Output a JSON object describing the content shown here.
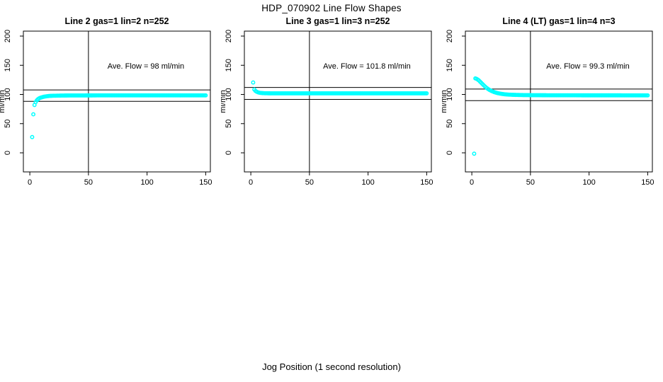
{
  "figure": {
    "main_title": "HDP_070902  Line Flow Shapes",
    "outer_xlabel": "Jog Position (1 second resolution)",
    "background": "#FFFFFF",
    "axis_color": "#000000",
    "point_color": "#00FFFF",
    "marker": "open-circle"
  },
  "chart_data": [
    {
      "type": "scatter",
      "title": "Line 2 gas=1 lin=2 n=252",
      "annotation": "Ave. Flow =  98  ml/min",
      "ave_flow_ml_min": 98,
      "n": 252,
      "ylabel": "ml/min",
      "x_ticks": [
        0,
        50,
        100,
        150
      ],
      "y_ticks": [
        0,
        50,
        100,
        150,
        200
      ],
      "xlim": [
        -5.5,
        154
      ],
      "ylim": [
        -32.7,
        208.5
      ],
      "vline_x": 50,
      "hlines": [
        107.8,
        88.2
      ],
      "annotation_xy": [
        99,
        149
      ],
      "x_step": 1,
      "keypoints": [
        [
          2,
          27
        ],
        [
          3,
          66
        ],
        [
          4,
          82
        ],
        [
          5,
          87
        ],
        [
          6,
          90
        ],
        [
          7,
          92
        ],
        [
          8,
          93.4
        ],
        [
          9,
          94.3
        ],
        [
          10,
          95
        ],
        [
          11,
          95.6
        ],
        [
          12,
          96.1
        ],
        [
          13,
          96.5
        ],
        [
          14,
          96.8
        ],
        [
          15,
          97.1
        ],
        [
          17,
          97.5
        ],
        [
          20,
          97.8
        ],
        [
          25,
          98
        ],
        [
          30,
          98.2
        ],
        [
          40,
          98.3
        ],
        [
          60,
          98.4
        ],
        [
          100,
          98.4
        ],
        [
          150,
          98.4
        ]
      ],
      "outliers": []
    },
    {
      "type": "scatter",
      "title": "Line 3 gas=1 lin=3 n=252",
      "annotation": "Ave. Flow =  101.8  ml/min",
      "ave_flow_ml_min": 101.8,
      "n": 252,
      "ylabel": "ml/min",
      "x_ticks": [
        0,
        50,
        100,
        150
      ],
      "y_ticks": [
        0,
        50,
        100,
        150,
        200
      ],
      "xlim": [
        -5.5,
        154
      ],
      "ylim": [
        -32.7,
        208.5
      ],
      "vline_x": 50,
      "hlines": [
        112.0,
        91.6
      ],
      "annotation_xy": [
        99,
        149
      ],
      "x_step": 1,
      "keypoints": [
        [
          2,
          120.5
        ],
        [
          3,
          108.5
        ],
        [
          4,
          106
        ],
        [
          5,
          104.6
        ],
        [
          6,
          103.7
        ],
        [
          7,
          103.1
        ],
        [
          8,
          102.7
        ],
        [
          9,
          102.5
        ],
        [
          10,
          102.3
        ],
        [
          12,
          102.1
        ],
        [
          15,
          102
        ],
        [
          20,
          101.9
        ],
        [
          30,
          101.9
        ],
        [
          60,
          101.9
        ],
        [
          100,
          101.9
        ],
        [
          150,
          101.9
        ]
      ],
      "outliers": []
    },
    {
      "type": "scatter",
      "title": "Line 4 (LT) gas=1 lin=4 n=3",
      "annotation": "Ave. Flow =  99.3  ml/min",
      "ave_flow_ml_min": 99.3,
      "n": 3,
      "ylabel": "ml/min",
      "x_ticks": [
        0,
        50,
        100,
        150
      ],
      "y_ticks": [
        0,
        50,
        100,
        150,
        200
      ],
      "xlim": [
        -5.5,
        154
      ],
      "ylim": [
        -32.7,
        208.5
      ],
      "vline_x": 50,
      "hlines": [
        109.2,
        89.4
      ],
      "annotation_xy": [
        99,
        149
      ],
      "x_step": 1,
      "keypoints": [
        [
          3,
          127.5
        ],
        [
          4,
          126.8
        ],
        [
          5,
          125.6
        ],
        [
          6,
          124
        ],
        [
          7,
          122
        ],
        [
          8,
          120
        ],
        [
          9,
          118
        ],
        [
          10,
          116
        ],
        [
          11,
          114
        ],
        [
          12,
          112.2
        ],
        [
          13,
          110.6
        ],
        [
          14,
          109.2
        ],
        [
          15,
          107.9
        ],
        [
          16,
          106.8
        ],
        [
          17,
          105.8
        ],
        [
          18,
          104.9
        ],
        [
          19,
          104.1
        ],
        [
          20,
          103.4
        ],
        [
          22,
          102.3
        ],
        [
          24,
          101.5
        ],
        [
          26,
          100.8
        ],
        [
          28,
          100.3
        ],
        [
          30,
          99.9
        ],
        [
          34,
          99.5
        ],
        [
          38,
          99.2
        ],
        [
          45,
          98.9
        ],
        [
          55,
          98.7
        ],
        [
          70,
          98.6
        ],
        [
          100,
          98.5
        ],
        [
          125,
          98.5
        ],
        [
          150,
          98.4
        ]
      ],
      "outliers": [
        [
          2,
          -1.5
        ]
      ]
    }
  ]
}
